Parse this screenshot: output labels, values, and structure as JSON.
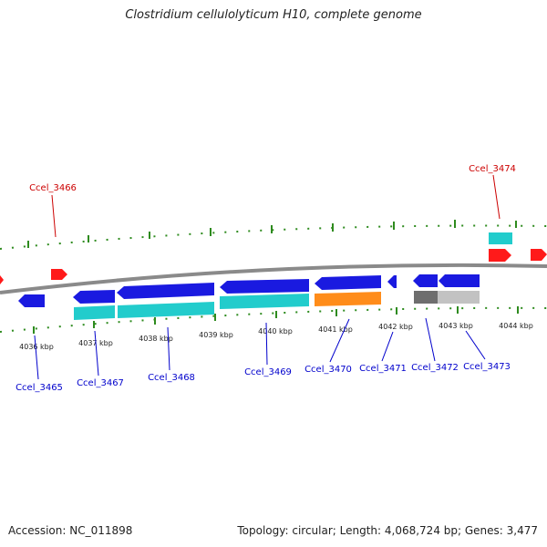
{
  "title": "Clostridium cellulolyticum H10, complete genome",
  "footer": {
    "accession": "Accession: NC_011898",
    "summary": "Topology: circular; Length: 4,068,724 bp; Genes: 3,477"
  },
  "colors": {
    "backbone": "#8a8a8a",
    "tick_green": "#2e8b1e",
    "label_blue": "#0000cc",
    "label_red": "#cc0000",
    "gene_blue": "#1a1ae0",
    "gene_cyan": "#22cccc",
    "gene_orange": "#ff8c1a",
    "gene_red": "#ff1a1a",
    "gene_darkgray": "#6e6e6e",
    "gene_lightgray": "#c2c2c2"
  },
  "scale_labels": [
    "4036 kbp",
    "4037 kbp",
    "4038 kbp",
    "4039 kbp",
    "4040 kbp",
    "4041 kbp",
    "4042 kbp",
    "4043 kbp",
    "4044 kbp"
  ],
  "genes": [
    {
      "label": "Ccel_3465",
      "strand": "-",
      "color": "blue"
    },
    {
      "label": "Ccel_3466",
      "strand": "+",
      "color": "red"
    },
    {
      "label": "Ccel_3467",
      "strand": "-",
      "color": "blue"
    },
    {
      "label": "Ccel_3468",
      "strand": "-",
      "color": "blue"
    },
    {
      "label": "Ccel_3469",
      "strand": "-",
      "color": "blue"
    },
    {
      "label": "Ccel_3470",
      "strand": "-",
      "color": "blue"
    },
    {
      "label": "Ccel_3471",
      "strand": "-",
      "color": "blue"
    },
    {
      "label": "Ccel_3472",
      "strand": "-",
      "color": "blue"
    },
    {
      "label": "Ccel_3473",
      "strand": "-",
      "color": "blue"
    },
    {
      "label": "Ccel_3474",
      "strand": "+",
      "color": "red"
    }
  ]
}
